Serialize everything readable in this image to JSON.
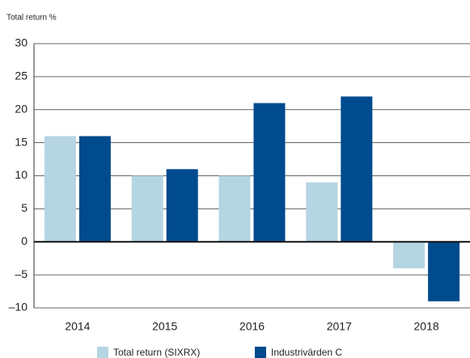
{
  "chart_data": {
    "type": "bar",
    "y_label": "Total return %",
    "categories": [
      "2014",
      "2015",
      "2016",
      "2017",
      "2018"
    ],
    "series": [
      {
        "name": "Total return (SIXRX)",
        "color": "#b5d5e3",
        "values": [
          16,
          10,
          10,
          9,
          -4
        ]
      },
      {
        "name": "Industrivärden C",
        "color": "#004b8d",
        "values": [
          16,
          11,
          21,
          22,
          -9
        ]
      }
    ],
    "ylim": [
      -10,
      30
    ],
    "yticks": [
      {
        "value": -10,
        "label": "–10"
      },
      {
        "value": -5,
        "label": "–5"
      },
      0,
      5,
      10,
      15,
      20,
      25,
      30
    ],
    "grid": true
  }
}
